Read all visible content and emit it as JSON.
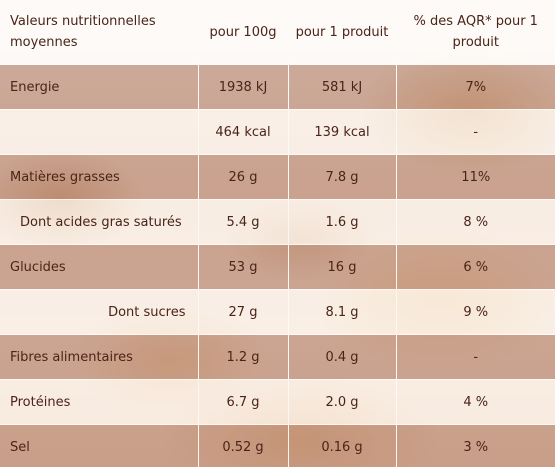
{
  "table": {
    "headers": [
      "Valeurs nutritionnelles moyennes",
      "pour 100g",
      "pour 1 produit",
      "% des AQR* pour 1 produit"
    ],
    "rows": [
      {
        "label": "Energie",
        "per100g": "1938 kJ",
        "perProduct": "581 kJ",
        "aqr": "7%"
      },
      {
        "label": "",
        "per100g": "464 kcal",
        "perProduct": "139 kcal",
        "aqr": "-"
      },
      {
        "label": "Matières grasses",
        "per100g": "26 g",
        "perProduct": "7.8 g",
        "aqr": "11%"
      },
      {
        "label": "Dont acides gras saturés",
        "per100g": "5.4 g",
        "perProduct": "1.6 g",
        "aqr": "8 %"
      },
      {
        "label": "Glucides",
        "per100g": "53 g",
        "perProduct": "16 g",
        "aqr": "6 %"
      },
      {
        "label": "Dont sucres",
        "per100g": "27 g",
        "perProduct": "8.1 g",
        "aqr": "9 %"
      },
      {
        "label": "Fibres alimentaires",
        "per100g": "1.2 g",
        "perProduct": "0.4 g",
        "aqr": "-"
      },
      {
        "label": "Protéines",
        "per100g": "6.7 g",
        "perProduct": "2.0 g",
        "aqr": "4 %"
      },
      {
        "label": "Sel",
        "per100g": "0.52 g",
        "perProduct": "0.16 g",
        "aqr": "3 %"
      }
    ]
  }
}
